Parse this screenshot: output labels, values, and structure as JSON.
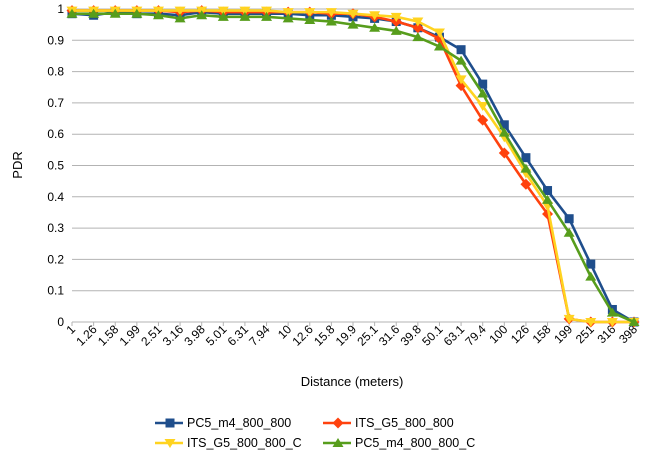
{
  "chart_data": {
    "type": "line",
    "xlabel": "Distance (meters)",
    "ylabel": "PDR",
    "ylim": [
      0,
      1
    ],
    "yticks": [
      "0",
      "0.1",
      "0.2",
      "0.3",
      "0.4",
      "0.5",
      "0.6",
      "0.7",
      "0.8",
      "0.9",
      "1"
    ],
    "grid": "horizontal",
    "legend_position": "bottom",
    "categories": [
      "1",
      "1.26",
      "1.58",
      "1.99",
      "2.51",
      "3.16",
      "3.98",
      "5.01",
      "6.31",
      "7.94",
      "10",
      "12.6",
      "15.8",
      "19.9",
      "25.1",
      "31.6",
      "39.8",
      "50.1",
      "63.1",
      "79.4",
      "100",
      "126",
      "158",
      "199",
      "251",
      "316",
      "398"
    ],
    "series": [
      {
        "name": "PC5_m4_800_800",
        "color": "#1f4e8c",
        "marker": "square",
        "values": [
          0.985,
          0.98,
          0.99,
          0.985,
          0.985,
          0.98,
          0.99,
          0.985,
          0.985,
          0.985,
          0.985,
          0.98,
          0.98,
          0.975,
          0.97,
          0.96,
          0.94,
          0.91,
          0.87,
          0.76,
          0.63,
          0.525,
          0.42,
          0.33,
          0.185,
          0.04,
          0.0
        ]
      },
      {
        "name": "ITS_G5_800_800",
        "color": "#ff420e",
        "marker": "diamond",
        "values": [
          0.995,
          0.995,
          0.995,
          0.995,
          0.995,
          0.99,
          0.995,
          0.99,
          0.99,
          0.99,
          0.99,
          0.99,
          0.985,
          0.985,
          0.975,
          0.96,
          0.94,
          0.905,
          0.755,
          0.645,
          0.54,
          0.44,
          0.345,
          0.01,
          0.0,
          0.0,
          0.0
        ]
      },
      {
        "name": "ITS_G5_800_800_C",
        "color": "#ffd320",
        "marker": "triangle-down",
        "values": [
          0.995,
          0.995,
          0.995,
          0.995,
          0.995,
          0.995,
          0.995,
          0.995,
          0.995,
          0.995,
          0.99,
          0.99,
          0.99,
          0.985,
          0.98,
          0.975,
          0.96,
          0.925,
          0.775,
          0.69,
          0.59,
          0.475,
          0.37,
          0.01,
          0.0,
          0.0,
          0.0
        ]
      },
      {
        "name": "PC5_m4_800_800_C",
        "color": "#579d1c",
        "marker": "triangle-up",
        "values": [
          0.985,
          0.985,
          0.985,
          0.985,
          0.98,
          0.97,
          0.98,
          0.975,
          0.975,
          0.975,
          0.97,
          0.965,
          0.96,
          0.95,
          0.94,
          0.93,
          0.91,
          0.88,
          0.835,
          0.73,
          0.605,
          0.49,
          0.39,
          0.285,
          0.145,
          0.03,
          0.0
        ]
      }
    ]
  }
}
